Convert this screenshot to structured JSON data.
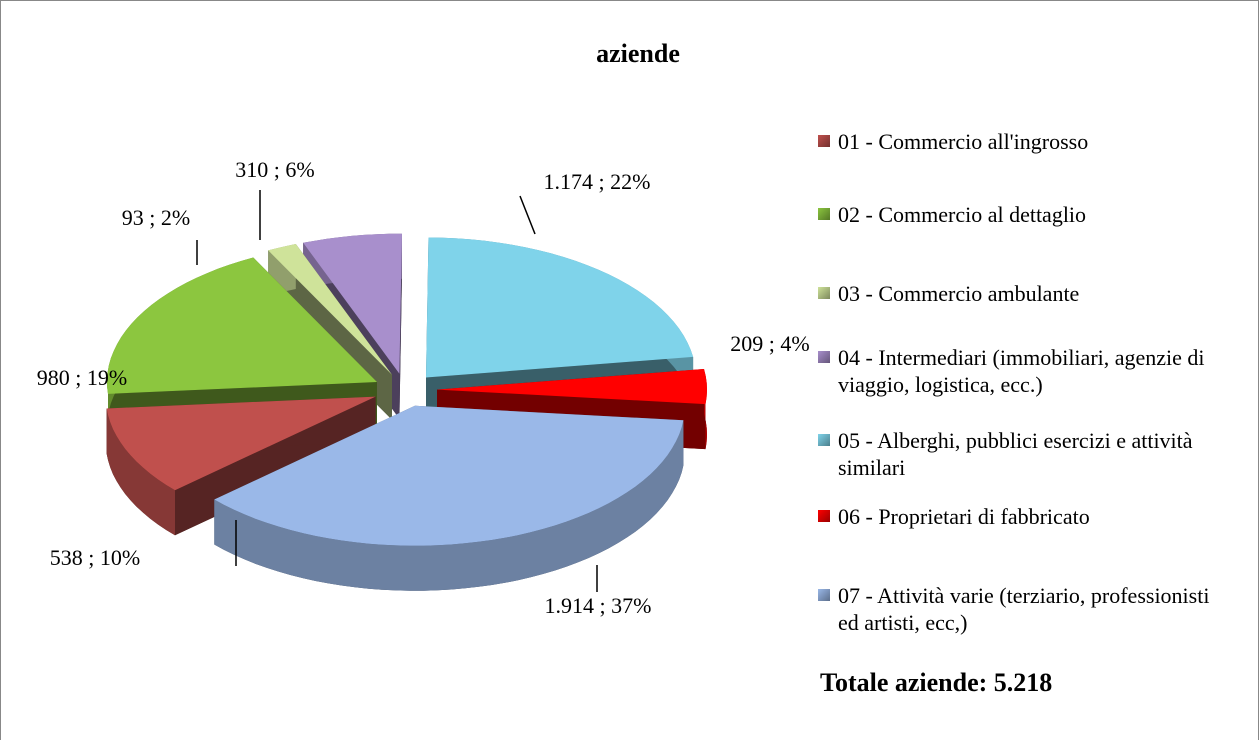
{
  "chart_data": {
    "type": "pie3d",
    "title": "aziende",
    "categories": [
      "01 - Commercio all'ingrosso",
      "02 - Commercio al dettaglio",
      "03 - Commercio ambulante",
      "04 - Intermediari (immobiliari, agenzie di viaggio, logistica, ecc.)",
      "05 - Alberghi, pubblici esercizi e attività similari",
      "06 - Proprietari di fabbricato",
      "07 - Attività varie (terziario, professionisti ed artisti, ecc,)"
    ],
    "values": [
      538,
      980,
      93,
      310,
      1174,
      209,
      1914
    ],
    "value_labels": [
      "538 ; 10%",
      "980 ; 19%",
      "93 ; 2%",
      "310 ; 6%",
      "1.174 ; 22%",
      "209 ; 4%",
      "1.914 ; 37%"
    ],
    "colors": [
      "#c0504d",
      "#8cc63f",
      "#cfe39a",
      "#a88fcc",
      "#7fd3ea",
      "#ff0000",
      "#9ab8e8"
    ],
    "annotation": "Totale aziende: 5.218",
    "legend": "right"
  }
}
